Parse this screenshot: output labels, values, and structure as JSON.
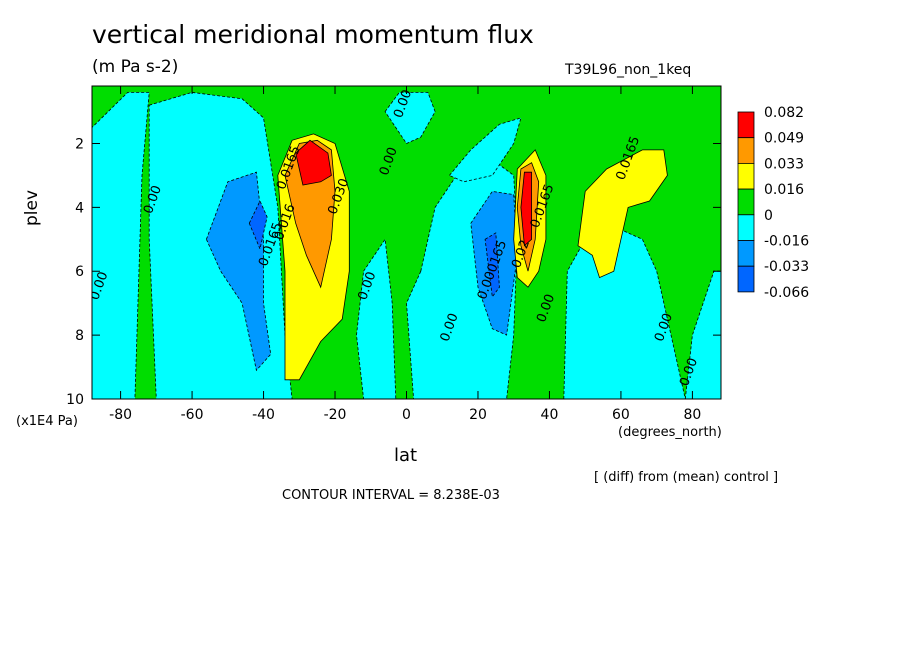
{
  "title": "vertical meridional momentum flux",
  "units": "(m Pa s-2)",
  "run_id": "T39L96_non_1keq",
  "note": "[ (diff) from (mean) control ]",
  "contour_interval": "CONTOUR INTERVAL = 8.238E-03",
  "chart_data": {
    "type": "heatmap",
    "title": "vertical meridional momentum flux",
    "xlabel": "lat",
    "xunits": "(degrees_north)",
    "ylabel": "plev",
    "ymultiplier": "(x1E4 Pa)",
    "xlim": [
      -88,
      88
    ],
    "ylim": [
      10,
      0.2
    ],
    "xticks": [
      -80,
      -60,
      -40,
      -20,
      0,
      20,
      40,
      60,
      80
    ],
    "xtick_labels": [
      "-80",
      "-60",
      "-40",
      "-20",
      "0",
      "20",
      "40",
      "60",
      "80"
    ],
    "yticks": [
      2,
      4,
      6,
      8,
      10
    ],
    "ytick_labels": [
      "2",
      "4",
      "6",
      "8",
      "10"
    ],
    "colorbar": {
      "labels": [
        "0.082",
        "0.049",
        "0.033",
        "0.016",
        "0",
        "-0.016",
        "-0.033",
        "-0.066"
      ],
      "colors": [
        "#ff0000",
        "#ff9900",
        "#ffff00",
        "#00dd00",
        "#00ffff",
        "#0099ff",
        "#0066ff"
      ]
    },
    "background_color": "#00dd00",
    "regions": [
      {
        "level": "-0.016",
        "color": "#00ffff",
        "points": [
          [
            -88,
            10
          ],
          [
            -76,
            10
          ],
          [
            -74,
            3
          ],
          [
            -72,
            0.4
          ],
          [
            -78,
            0.4
          ],
          [
            -88,
            1.5
          ]
        ]
      },
      {
        "level": "-0.016",
        "color": "#00ffff",
        "points": [
          [
            -72,
            0.8
          ],
          [
            -60,
            0.4
          ],
          [
            -46,
            0.6
          ],
          [
            -40,
            1.2
          ],
          [
            -36,
            4
          ],
          [
            -34,
            8
          ],
          [
            -32,
            10
          ],
          [
            -70,
            10
          ],
          [
            -72,
            5
          ]
        ]
      },
      {
        "level": "-0.033",
        "color": "#0099ff",
        "points": [
          [
            -56,
            5
          ],
          [
            -50,
            3.2
          ],
          [
            -42,
            2.9
          ],
          [
            -40,
            5
          ],
          [
            -40,
            7
          ],
          [
            -38,
            8.6
          ],
          [
            -42,
            9.1
          ],
          [
            -46,
            7
          ],
          [
            -52,
            6
          ]
        ]
      },
      {
        "level": "-0.066",
        "color": "#0066ff",
        "points": [
          [
            -44,
            4.5
          ],
          [
            -41,
            3.8
          ],
          [
            -39,
            4.3
          ],
          [
            -41,
            5.3
          ]
        ]
      },
      {
        "level": "-0.016",
        "color": "#00ffff",
        "points": [
          [
            -12,
            6
          ],
          [
            -6,
            5
          ],
          [
            -4,
            7
          ],
          [
            -3,
            10
          ],
          [
            -12,
            10
          ],
          [
            -14,
            8
          ]
        ]
      },
      {
        "level": "-0.016",
        "color": "#00ffff",
        "points": [
          [
            -6,
            1
          ],
          [
            -2,
            0.4
          ],
          [
            6,
            0.4
          ],
          [
            8,
            1
          ],
          [
            4,
            1.8
          ],
          [
            0,
            2
          ]
        ]
      },
      {
        "level": "-0.016",
        "color": "#00ffff",
        "points": [
          [
            4,
            6
          ],
          [
            8,
            4
          ],
          [
            14,
            3
          ],
          [
            24,
            2.5
          ],
          [
            30,
            3
          ],
          [
            31,
            5
          ],
          [
            30,
            8
          ],
          [
            28,
            10
          ],
          [
            2,
            10
          ],
          [
            0,
            7
          ]
        ]
      },
      {
        "level": "-0.016",
        "color": "#00ffff",
        "points": [
          [
            12,
            3
          ],
          [
            18,
            2.2
          ],
          [
            26,
            1.4
          ],
          [
            32,
            1.2
          ],
          [
            30,
            2
          ],
          [
            24,
            3
          ],
          [
            16,
            3.2
          ]
        ]
      },
      {
        "level": "-0.033",
        "color": "#0099ff",
        "points": [
          [
            18,
            4.5
          ],
          [
            24,
            3.5
          ],
          [
            30,
            3.6
          ],
          [
            31,
            5.5
          ],
          [
            28,
            8
          ],
          [
            24,
            7.8
          ],
          [
            20,
            6.5
          ]
        ]
      },
      {
        "level": "-0.066",
        "color": "#0066ff",
        "points": [
          [
            22,
            5
          ],
          [
            25,
            4.8
          ],
          [
            26,
            6.5
          ],
          [
            24,
            6.8
          ]
        ]
      },
      {
        "level": "-0.016",
        "color": "#00ffff",
        "points": [
          [
            44,
            10
          ],
          [
            45,
            6
          ],
          [
            50,
            5
          ],
          [
            60,
            4.7
          ],
          [
            66,
            5
          ],
          [
            70,
            6
          ],
          [
            74,
            8
          ],
          [
            78,
            10
          ]
        ]
      },
      {
        "level": "-0.016",
        "color": "#00ffff",
        "points": [
          [
            78,
            10
          ],
          [
            80,
            8
          ],
          [
            86,
            6
          ],
          [
            88,
            6
          ],
          [
            88,
            10
          ]
        ]
      },
      {
        "level": "0.016",
        "color": "#ffff00",
        "points": [
          [
            -36,
            3
          ],
          [
            -32,
            1.9
          ],
          [
            -26,
            1.7
          ],
          [
            -20,
            2
          ],
          [
            -16,
            3.5
          ],
          [
            -16,
            6
          ],
          [
            -18,
            7.5
          ],
          [
            -24,
            8.2
          ],
          [
            -30,
            9.4
          ],
          [
            -34,
            9.4
          ],
          [
            -34,
            6
          ]
        ]
      },
      {
        "level": "0.033",
        "color": "#ff9900",
        "points": [
          [
            -34,
            3
          ],
          [
            -30,
            2
          ],
          [
            -25,
            1.9
          ],
          [
            -21,
            2.2
          ],
          [
            -20,
            3.5
          ],
          [
            -21,
            5
          ],
          [
            -24,
            6.5
          ],
          [
            -28,
            5.5
          ],
          [
            -31,
            4.5
          ]
        ]
      },
      {
        "level": "0.082",
        "color": "#ff0000",
        "points": [
          [
            -31,
            2.3
          ],
          [
            -27,
            1.9
          ],
          [
            -22,
            2.3
          ],
          [
            -21,
            3
          ],
          [
            -24,
            3.2
          ],
          [
            -29,
            3.3
          ]
        ]
      },
      {
        "level": "0.016",
        "color": "#ffff00",
        "points": [
          [
            30,
            5
          ],
          [
            31,
            2.8
          ],
          [
            36,
            2.2
          ],
          [
            39,
            3
          ],
          [
            39,
            5
          ],
          [
            37,
            6
          ],
          [
            34,
            6.5
          ],
          [
            31,
            6.2
          ]
        ]
      },
      {
        "level": "0.033",
        "color": "#ff9900",
        "points": [
          [
            31,
            4
          ],
          [
            32,
            2.8
          ],
          [
            35,
            2.6
          ],
          [
            37,
            3.2
          ],
          [
            36,
            5
          ],
          [
            34,
            6
          ],
          [
            32,
            5.2
          ]
        ]
      },
      {
        "level": "0.082",
        "color": "#ff0000",
        "points": [
          [
            32,
            4
          ],
          [
            33,
            2.9
          ],
          [
            35,
            2.9
          ],
          [
            35,
            5
          ],
          [
            33,
            5.2
          ]
        ]
      },
      {
        "level": "0.016",
        "color": "#ffff00",
        "points": [
          [
            48,
            5.2
          ],
          [
            50,
            3.5
          ],
          [
            56,
            2.8
          ],
          [
            66,
            2.2
          ],
          [
            72,
            2.2
          ],
          [
            73,
            3
          ],
          [
            68,
            3.8
          ],
          [
            62,
            4
          ],
          [
            58,
            6
          ],
          [
            54,
            6.2
          ],
          [
            52,
            5.5
          ]
        ]
      }
    ],
    "contour_labels": [
      {
        "text": "0.00",
        "lat": 0,
        "plev": 0.8
      },
      {
        "text": "0.00",
        "lat": -4,
        "plev": 2.6
      },
      {
        "text": "0.00",
        "lat": -70,
        "plev": 3.8
      },
      {
        "text": "0.00",
        "lat": -85,
        "plev": 6.5
      },
      {
        "text": "0.00",
        "lat": -10,
        "plev": 6.5
      },
      {
        "text": "0.00",
        "lat": 13,
        "plev": 7.8
      },
      {
        "text": "0.00",
        "lat": 40,
        "plev": 7.2
      },
      {
        "text": "0.00",
        "lat": 73,
        "plev": 7.8
      },
      {
        "text": "0.00",
        "lat": 80,
        "plev": 9.2
      },
      {
        "text": "0.0165",
        "lat": -37,
        "plev": 5.2
      },
      {
        "text": "0.0165",
        "lat": -32,
        "plev": 2.8
      },
      {
        "text": "0.016",
        "lat": -33,
        "plev": 4.5
      },
      {
        "text": "0.030",
        "lat": -18,
        "plev": 3.7
      },
      {
        "text": "0.0165",
        "lat": 63,
        "plev": 2.5
      },
      {
        "text": "0.0165",
        "lat": 39,
        "plev": 4
      },
      {
        "text": "0.000165",
        "lat": 25,
        "plev": 6
      },
      {
        "text": "0.02",
        "lat": 33,
        "plev": 5.5
      }
    ]
  }
}
